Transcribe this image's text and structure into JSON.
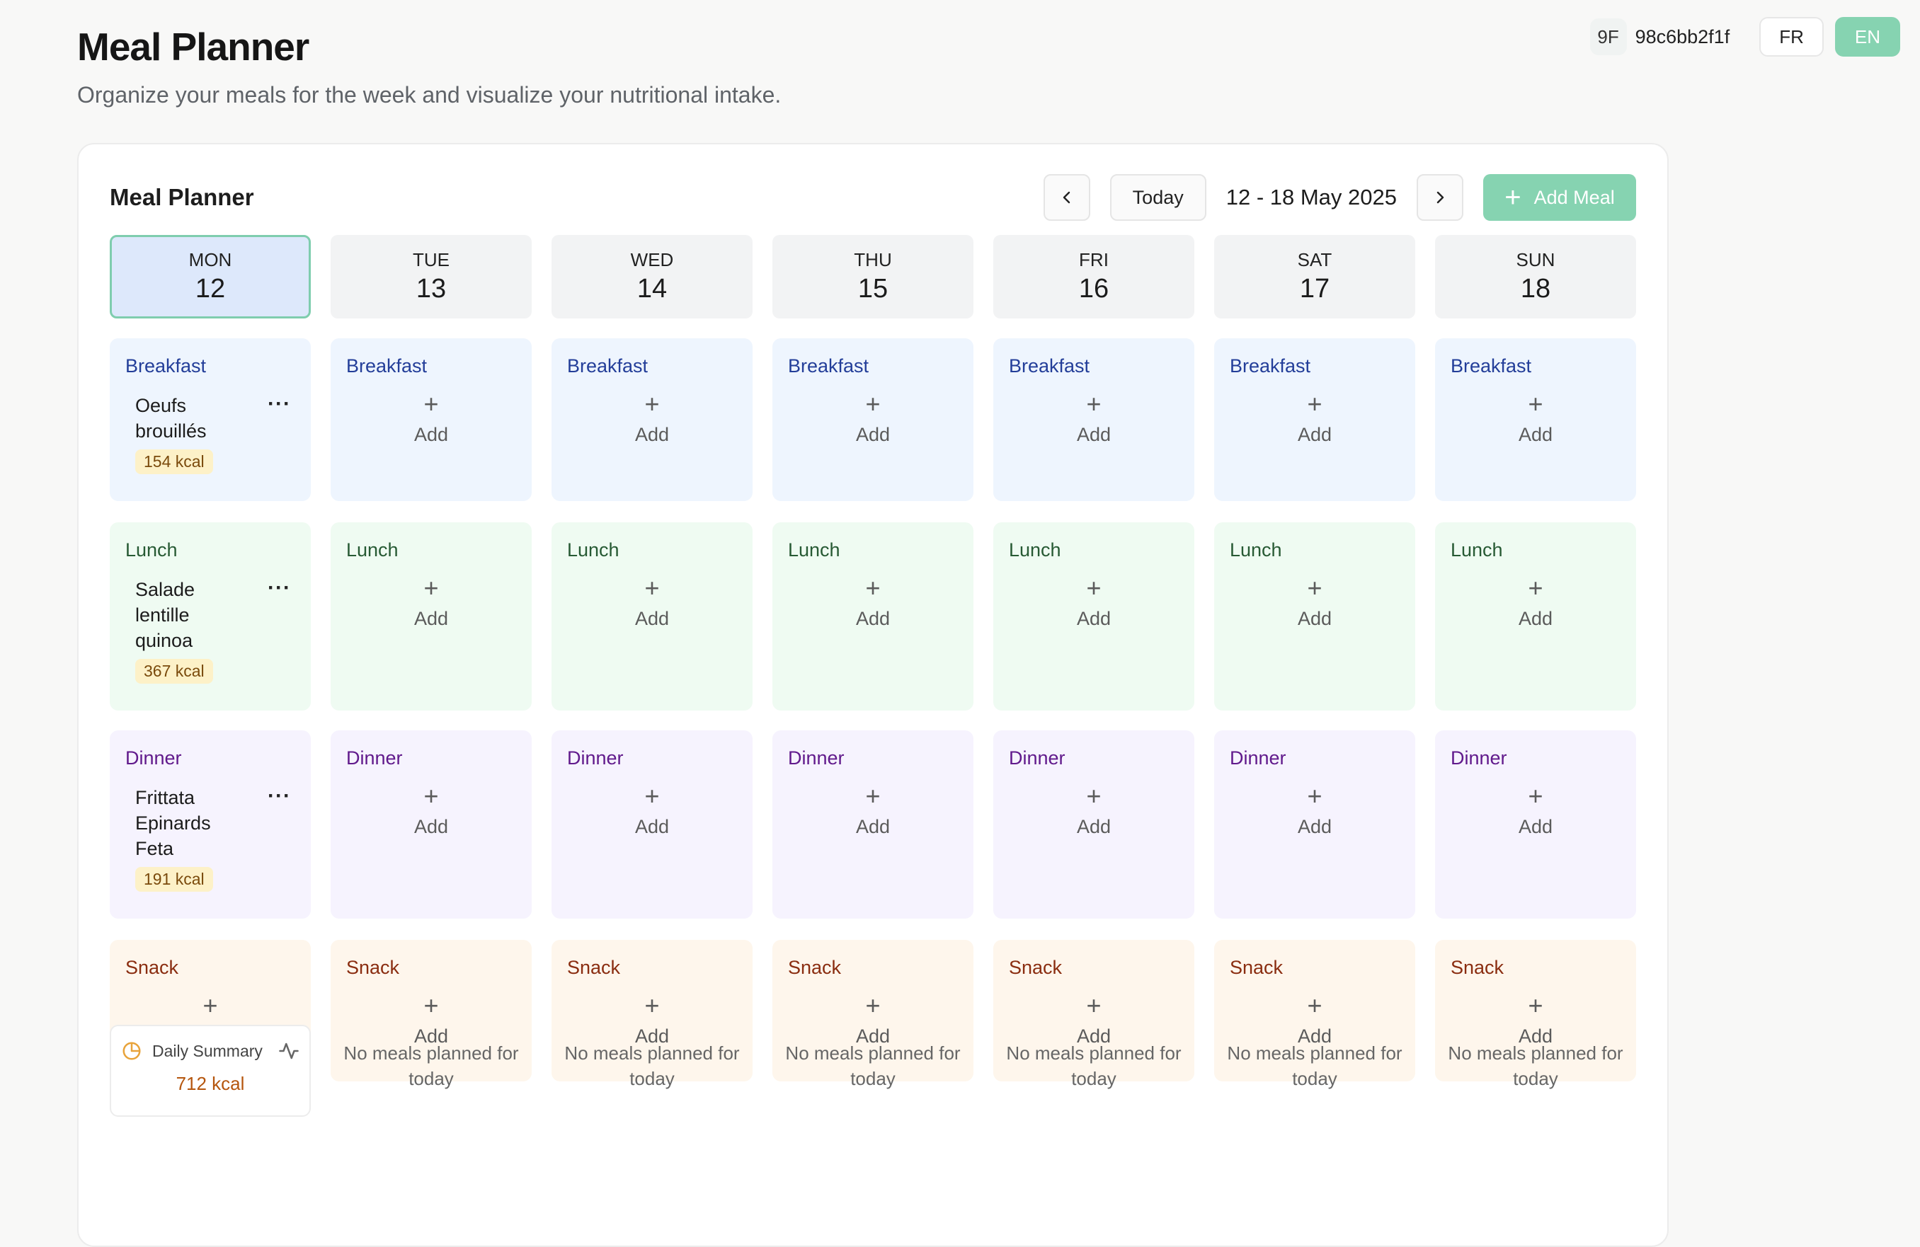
{
  "header": {
    "title": "Meal Planner",
    "subtitle": "Organize your meals for the week and visualize your nutritional intake."
  },
  "user": {
    "initials": "9F",
    "id": "98c6bb2f1f"
  },
  "languages": {
    "fr": "FR",
    "en": "EN",
    "active": "EN"
  },
  "planner": {
    "title": "Meal Planner",
    "today_label": "Today",
    "date_range": "12 - 18 May 2025",
    "add_meal_label": "Add Meal"
  },
  "colors": {
    "accent": "#86d3b1",
    "breakfast": "#eef5fe",
    "lunch": "#effbf2",
    "dinner": "#f6f3fe",
    "snack": "#fef6ec",
    "kcal_badge": "#fdf1c8"
  },
  "slots": {
    "breakfast": "Breakfast",
    "lunch": "Lunch",
    "dinner": "Dinner",
    "snack": "Snack",
    "add_label": "Add"
  },
  "days": [
    {
      "name": "MON",
      "num": "12",
      "is_today": true,
      "meals": {
        "breakfast": {
          "name": "Oeufs brouillés",
          "kcal": "154 kcal"
        },
        "lunch": {
          "name": "Salade lentille quinoa",
          "kcal": "367 kcal"
        },
        "dinner": {
          "name": "Frittata Epinards Feta",
          "kcal": "191 kcal"
        }
      },
      "summary": {
        "label": "Daily Summary",
        "kcal": "712 kcal"
      }
    },
    {
      "name": "TUE",
      "num": "13",
      "summary_empty": "No meals planned for today"
    },
    {
      "name": "WED",
      "num": "14",
      "summary_empty": "No meals planned for today"
    },
    {
      "name": "THU",
      "num": "15",
      "summary_empty": "No meals planned for today"
    },
    {
      "name": "FRI",
      "num": "16",
      "summary_empty": "No meals planned for today"
    },
    {
      "name": "SAT",
      "num": "17",
      "summary_empty": "No meals planned for today"
    },
    {
      "name": "SUN",
      "num": "18",
      "summary_empty": "No meals planned for today"
    }
  ]
}
